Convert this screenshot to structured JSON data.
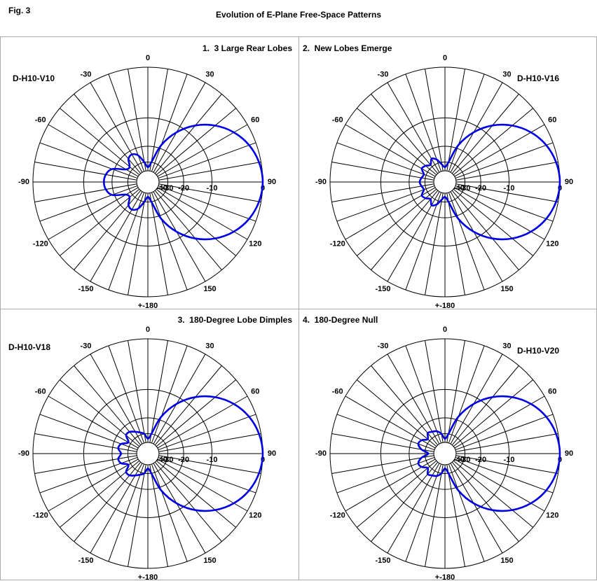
{
  "figure": {
    "label": "Fig. 3",
    "title": "Evolution of E-Plane Free-Space Patterns"
  },
  "chart_data": [
    {
      "type": "polar",
      "title": "1.  3 Large Rear Lobes",
      "subtitle": "D-H10-V10",
      "rscale": "arrl-log",
      "color": "#0000e6",
      "x": [
        0,
        10,
        20,
        30,
        40,
        50,
        60,
        70,
        80,
        90,
        100,
        110,
        120,
        130,
        140,
        150,
        160,
        170,
        180,
        190,
        200,
        210,
        220,
        230,
        240,
        250,
        260,
        270,
        280,
        290,
        300,
        310,
        320,
        330,
        340,
        350
      ],
      "values": [
        -35,
        -30,
        -18.4,
        -11.9,
        -7.6,
        -4.6,
        -2.5,
        -1.1,
        -0.3,
        0,
        -0.3,
        -1.1,
        -2.5,
        -4.6,
        -7.6,
        -11.9,
        -18.4,
        -30,
        -35,
        -30,
        -24,
        -22,
        -23,
        -27,
        -26,
        -19,
        -17,
        -16.5,
        -17,
        -19,
        -26,
        -27,
        -23,
        -22,
        -24,
        -30
      ],
      "rlim": [
        -40,
        0
      ],
      "rticks": [
        -40,
        -30,
        -20,
        -10,
        0
      ],
      "angle_ticks": [
        0,
        30,
        60,
        90,
        120,
        150,
        {
          "value": 180,
          "label": "+-180"
        },
        -150,
        -120,
        -90,
        -60,
        -30
      ]
    },
    {
      "type": "polar",
      "title": "2.  New Lobes Emerge",
      "subtitle": "D-H10-V16",
      "rscale": "arrl-log",
      "color": "#0000e6",
      "x": [
        0,
        10,
        20,
        30,
        40,
        50,
        60,
        70,
        80,
        90,
        100,
        110,
        120,
        130,
        140,
        150,
        160,
        170,
        180,
        190,
        200,
        210,
        220,
        230,
        240,
        250,
        260,
        270,
        280,
        290,
        300,
        310,
        320,
        330,
        340,
        350
      ],
      "values": [
        -35,
        -30,
        -18.4,
        -11.9,
        -7.6,
        -4.6,
        -2.5,
        -1.1,
        -0.3,
        0,
        -0.3,
        -1.1,
        -2.5,
        -4.6,
        -7.6,
        -11.9,
        -18.4,
        -30,
        -35,
        -32,
        -27,
        -25,
        -28,
        -26,
        -25,
        -28,
        -27,
        -26,
        -27,
        -28,
        -25,
        -26,
        -28,
        -25,
        -27,
        -32
      ],
      "rlim": [
        -40,
        0
      ],
      "rticks": [
        -40,
        -30,
        -20,
        -10,
        0
      ],
      "angle_ticks": [
        0,
        30,
        60,
        90,
        120,
        150,
        {
          "value": 180,
          "label": "+-180"
        },
        -150,
        -120,
        -90,
        -60,
        -30
      ]
    },
    {
      "type": "polar",
      "title": "3.  180-Degree Lobe Dimples",
      "subtitle": "D-H10-V18",
      "rscale": "arrl-log",
      "color": "#0000e6",
      "x": [
        0,
        10,
        20,
        30,
        40,
        50,
        60,
        70,
        80,
        90,
        100,
        110,
        120,
        130,
        140,
        150,
        160,
        170,
        180,
        190,
        200,
        210,
        220,
        230,
        240,
        250,
        260,
        270,
        280,
        290,
        300,
        310,
        320,
        330,
        340,
        350
      ],
      "values": [
        -35,
        -30,
        -18.4,
        -11.9,
        -7.6,
        -4.6,
        -2.5,
        -1.1,
        -0.3,
        0,
        -0.3,
        -1.1,
        -2.5,
        -4.6,
        -7.6,
        -11.9,
        -18.4,
        -30,
        -35,
        -30,
        -28,
        -26,
        -24,
        -24,
        -28,
        -24,
        -23,
        -25,
        -23,
        -24,
        -28,
        -24,
        -24,
        -26,
        -28,
        -30
      ],
      "rlim": [
        -40,
        0
      ],
      "rticks": [
        -40,
        -30,
        -20,
        -10,
        0
      ],
      "angle_ticks": [
        0,
        30,
        60,
        90,
        120,
        150,
        {
          "value": 180,
          "label": "+-180"
        },
        -150,
        -120,
        -90,
        -60,
        -30
      ]
    },
    {
      "type": "polar",
      "title": "4.  180-Degree Null",
      "subtitle": "D-H10-V20",
      "rscale": "arrl-log",
      "color": "#0000e6",
      "x": [
        0,
        10,
        20,
        30,
        40,
        50,
        60,
        70,
        80,
        90,
        100,
        110,
        120,
        130,
        140,
        150,
        160,
        170,
        180,
        190,
        200,
        210,
        220,
        230,
        240,
        250,
        260,
        270,
        280,
        290,
        300,
        310,
        320,
        330,
        340,
        350
      ],
      "values": [
        -35,
        -30,
        -18.4,
        -11.9,
        -7.6,
        -4.6,
        -2.5,
        -1.1,
        -0.3,
        0,
        -0.3,
        -1.1,
        -2.5,
        -4.6,
        -7.6,
        -11.9,
        -18.4,
        -30,
        -35,
        -30,
        -27,
        -26,
        -25,
        -28,
        -25,
        -24,
        -27,
        -33,
        -27,
        -24,
        -25,
        -28,
        -25,
        -26,
        -27,
        -30
      ],
      "rlim": [
        -40,
        0
      ],
      "rticks": [
        -40,
        -30,
        -20,
        -10,
        0
      ],
      "angle_ticks": [
        0,
        30,
        60,
        90,
        120,
        150,
        {
          "value": 180,
          "label": "+-180"
        },
        -150,
        -120,
        -90,
        -60,
        -30
      ]
    }
  ]
}
